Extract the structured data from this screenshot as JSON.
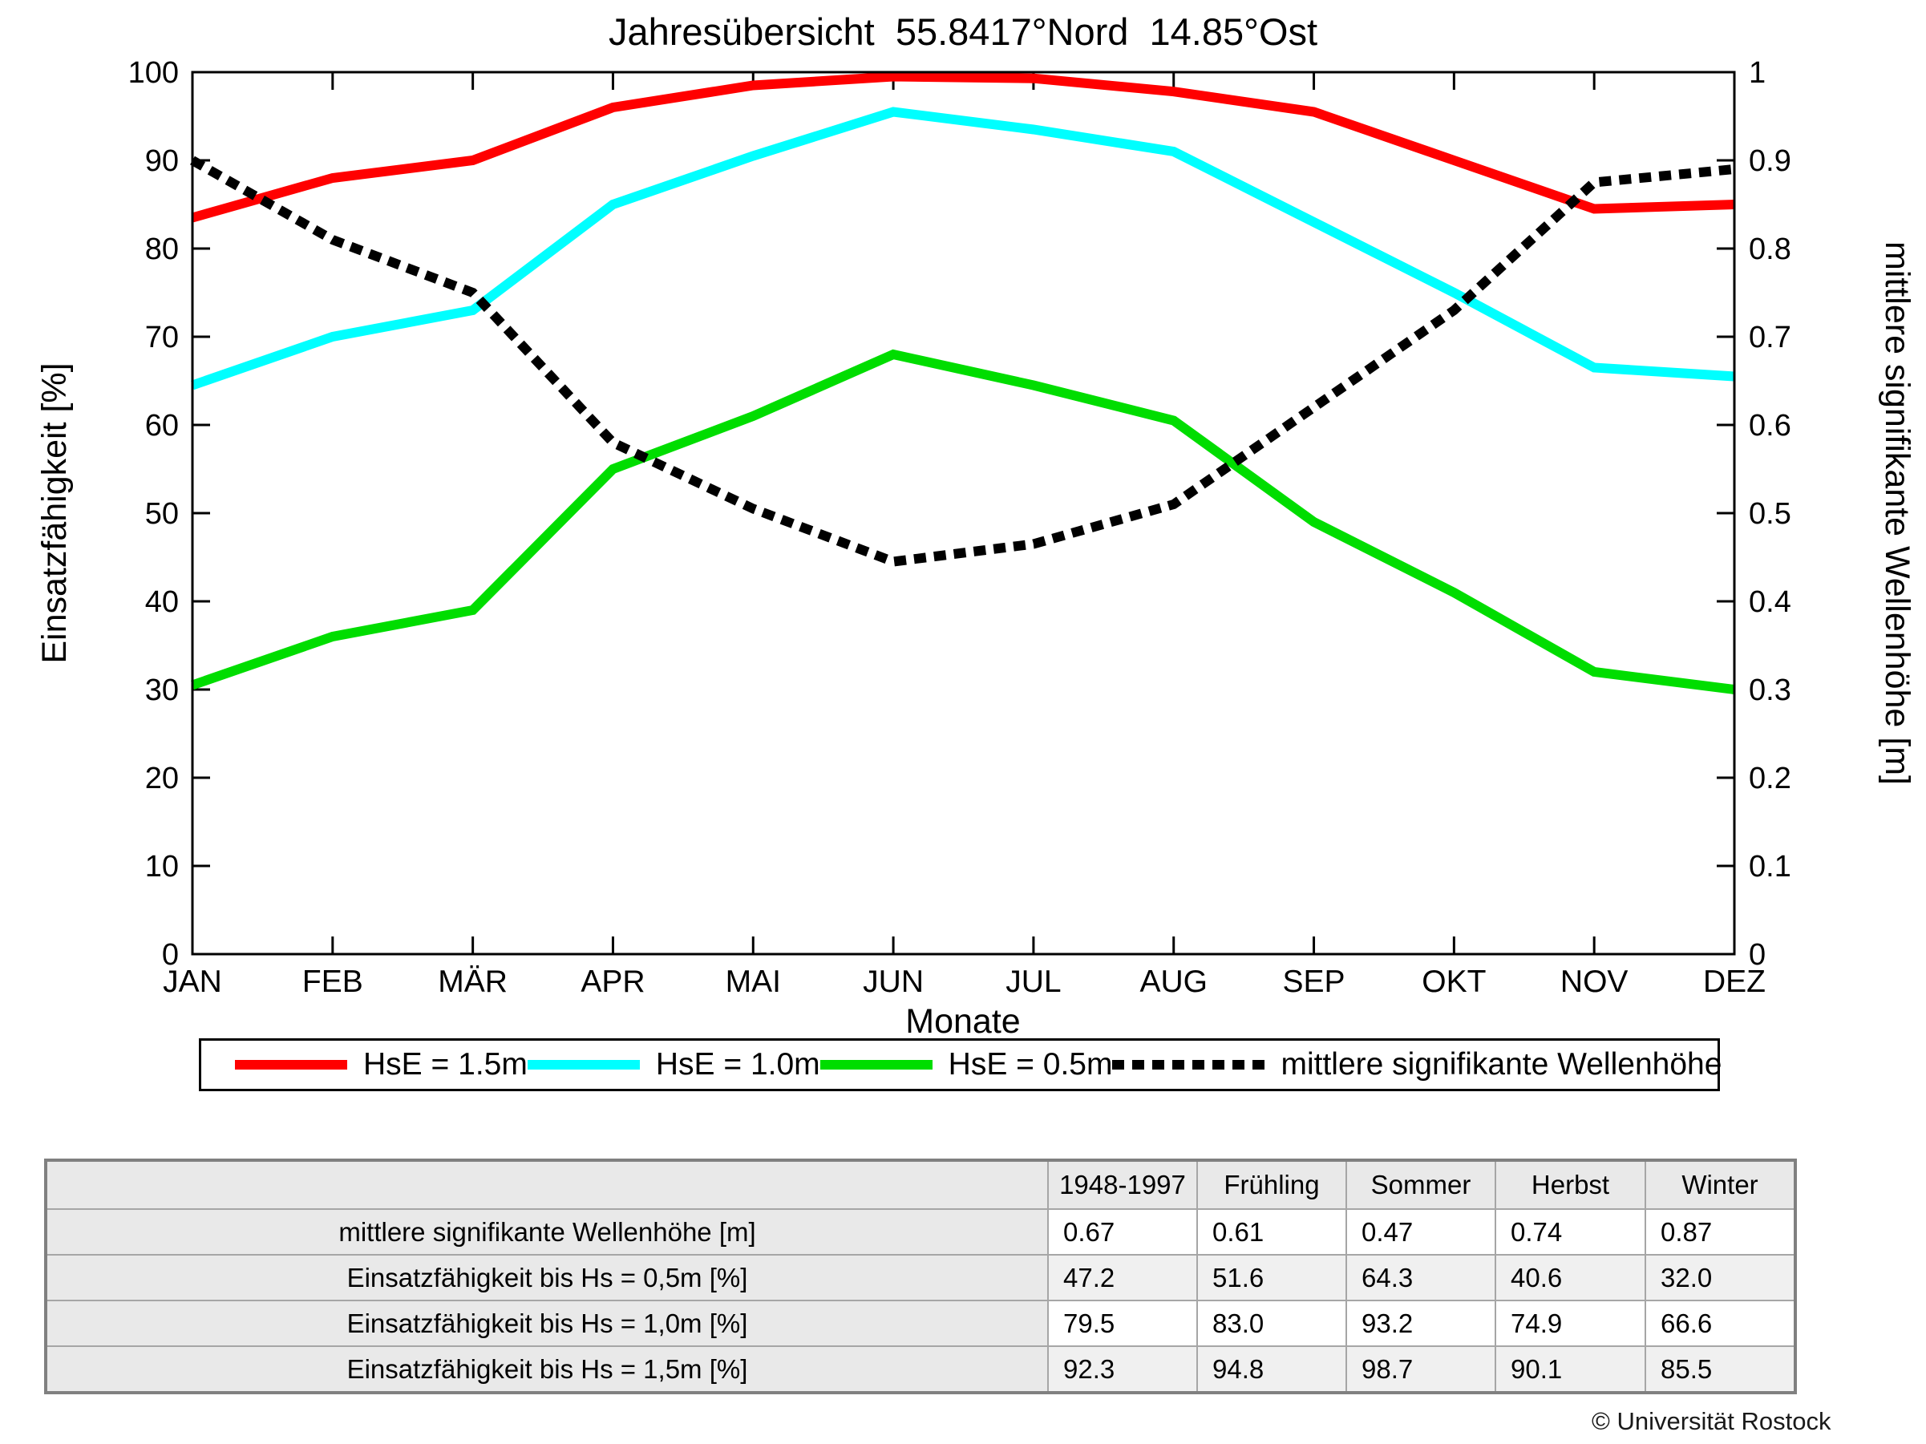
{
  "title": "Jahresübersicht  55.8417°Nord  14.85°Ost",
  "chart_data": {
    "type": "line",
    "categories": [
      "JAN",
      "FEB",
      "MÄR",
      "APR",
      "MAI",
      "JUN",
      "JUL",
      "AUG",
      "SEP",
      "OKT",
      "NOV",
      "DEZ"
    ],
    "xlabel": "Monate",
    "ylabel_left": "Einsatzfähigkeit [%]",
    "ylabel_right": "mittlere signifikante Wellenhöhe [m]",
    "ylim_left": [
      0,
      100
    ],
    "ylim_right": [
      0,
      1
    ],
    "yticks_left": [
      0,
      10,
      20,
      30,
      40,
      50,
      60,
      70,
      80,
      90,
      100
    ],
    "yticks_right": [
      "0",
      "0.1",
      "0.2",
      "0.3",
      "0.4",
      "0.5",
      "0.6",
      "0.7",
      "0.8",
      "0.9",
      "1"
    ],
    "grid": false,
    "legend_position": "bottom",
    "series": [
      {
        "name": "HsE = 1.5m",
        "color": "#ff0000",
        "axis": "left",
        "style": "solid",
        "values": [
          83.5,
          88,
          90,
          96,
          98.5,
          99.5,
          99.3,
          97.8,
          95.5,
          90,
          84.5,
          85
        ]
      },
      {
        "name": "HsE = 1.0m",
        "color": "#00ffff",
        "axis": "left",
        "style": "solid",
        "values": [
          64.5,
          70,
          73,
          85,
          90.5,
          95.5,
          93.5,
          91,
          83,
          75,
          66.5,
          65.5
        ]
      },
      {
        "name": "HsE = 0.5m",
        "color": "#00dd00",
        "axis": "left",
        "style": "solid",
        "values": [
          30.5,
          36,
          39,
          55,
          61,
          68,
          64.5,
          60.5,
          49,
          41,
          32,
          30
        ]
      },
      {
        "name": "mittlere signifikante Wellenhöhe",
        "color": "#000000",
        "axis": "right",
        "style": "dotted",
        "values": [
          0.9,
          0.81,
          0.75,
          0.58,
          0.505,
          0.445,
          0.465,
          0.51,
          0.62,
          0.73,
          0.875,
          0.89
        ]
      }
    ]
  },
  "table": {
    "headers": [
      "",
      "1948-1997",
      "Frühling",
      "Sommer",
      "Herbst",
      "Winter"
    ],
    "rows": [
      {
        "label": "mittlere signifikante Wellenhöhe [m]",
        "values": [
          "0.67",
          "0.61",
          "0.47",
          "0.74",
          "0.87"
        ]
      },
      {
        "label": "Einsatzfähigkeit bis Hs = 0,5m [%]",
        "values": [
          "47.2",
          "51.6",
          "64.3",
          "40.6",
          "32.0"
        ]
      },
      {
        "label": "Einsatzfähigkeit bis Hs = 1,0m [%]",
        "values": [
          "79.5",
          "83.0",
          "93.2",
          "74.9",
          "66.6"
        ]
      },
      {
        "label": "Einsatzfähigkeit bis Hs = 1,5m [%]",
        "values": [
          "92.3",
          "94.8",
          "98.7",
          "90.1",
          "85.5"
        ]
      }
    ]
  },
  "footer": {
    "copyright": "© Universität Rostock"
  },
  "colors": {
    "hse_15": "#ff0000",
    "hse_10": "#00ffff",
    "hse_05": "#00dd00",
    "wave_height": "#000000",
    "table_shade": "#e9e9e9"
  }
}
